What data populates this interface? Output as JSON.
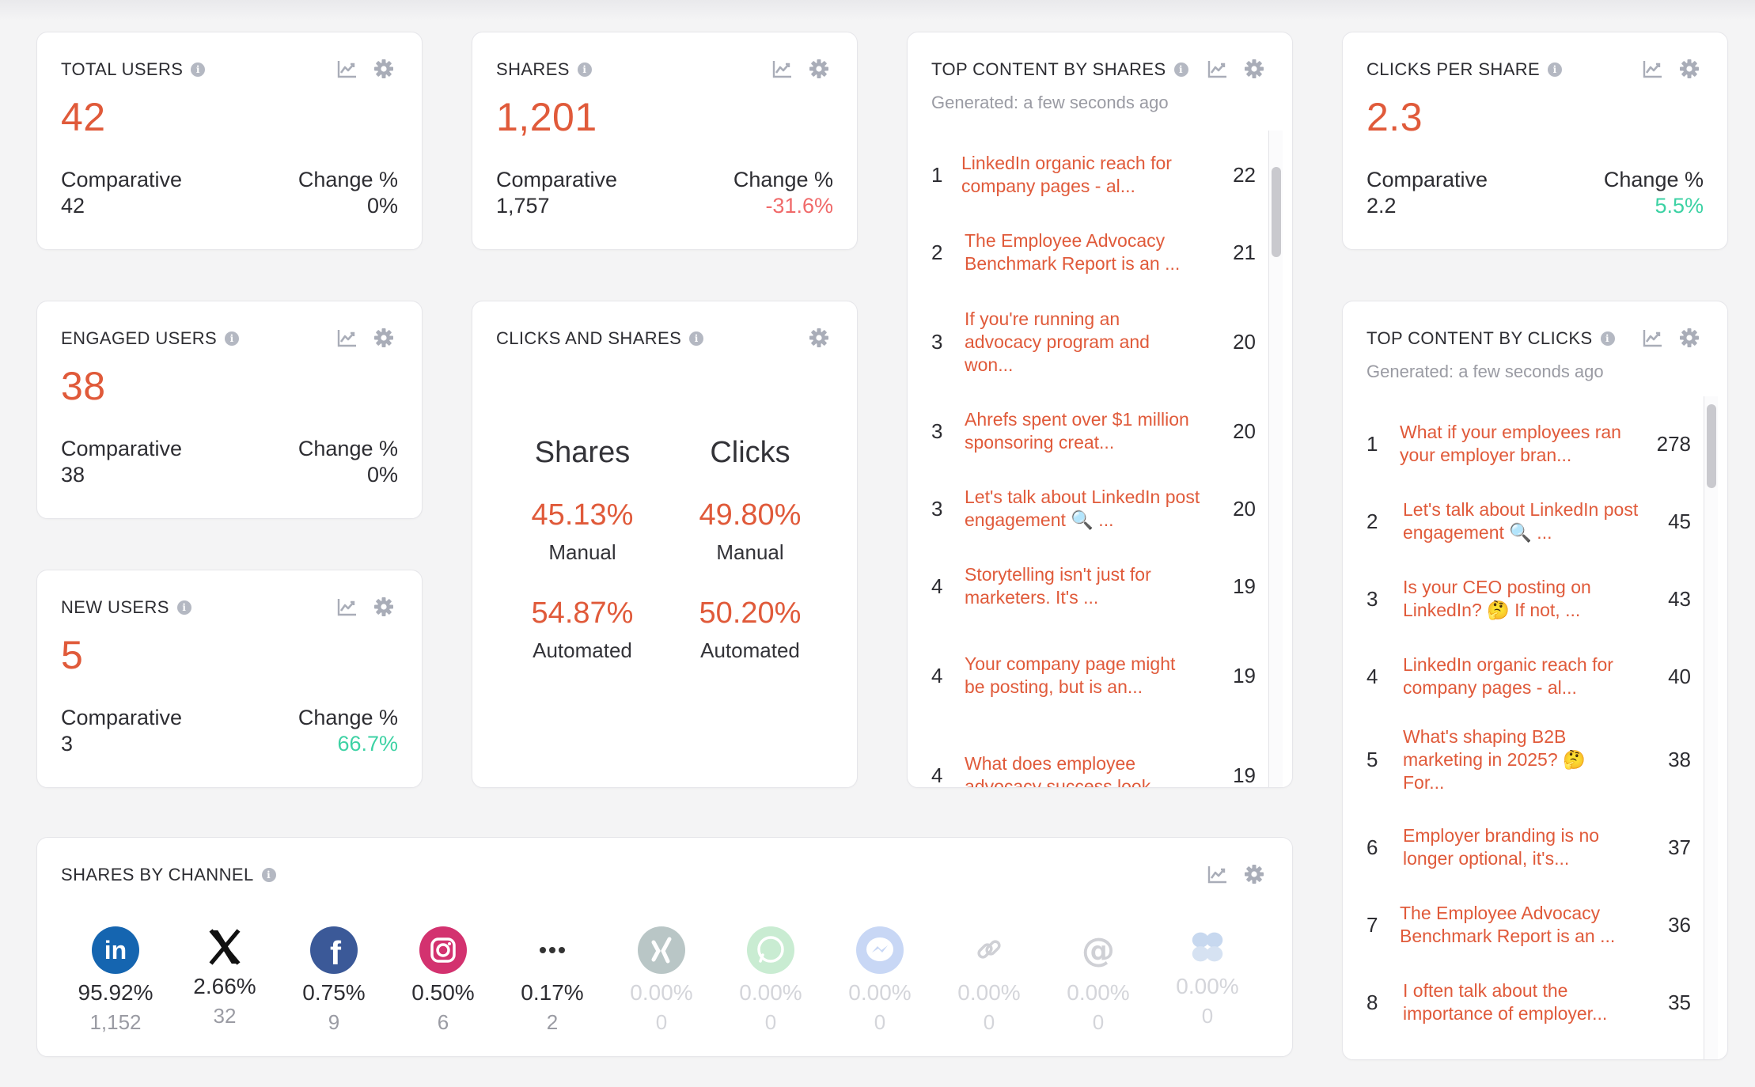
{
  "colors": {
    "accent": "#e05a3a",
    "positive": "#3dd2a4",
    "negative": "#f06a6a",
    "muted": "#9a9ba3"
  },
  "cards": {
    "total_users": {
      "title": "TOTAL USERS",
      "value": "42",
      "cmp_label": "Comparative",
      "cmp_value": "42",
      "chg_label": "Change %",
      "chg_value": "0%"
    },
    "shares": {
      "title": "SHARES",
      "value": "1,201",
      "cmp_label": "Comparative",
      "cmp_value": "1,757",
      "chg_label": "Change %",
      "chg_value": "-31.6%"
    },
    "clicks_per_share": {
      "title": "CLICKS PER SHARE",
      "value": "2.3",
      "cmp_label": "Comparative",
      "cmp_value": "2.2",
      "chg_label": "Change %",
      "chg_value": "5.5%"
    },
    "engaged_users": {
      "title": "ENGAGED USERS",
      "value": "38",
      "cmp_label": "Comparative",
      "cmp_value": "38",
      "chg_label": "Change %",
      "chg_value": "0%"
    },
    "new_users": {
      "title": "NEW USERS",
      "value": "5",
      "cmp_label": "Comparative",
      "cmp_value": "3",
      "chg_label": "Change %",
      "chg_value": "66.7%"
    }
  },
  "clicks_and_shares": {
    "title": "CLICKS AND SHARES",
    "shares": {
      "heading": "Shares",
      "manual_pct": "45.13%",
      "manual_label": "Manual",
      "auto_pct": "54.87%",
      "auto_label": "Automated"
    },
    "clicks": {
      "heading": "Clicks",
      "manual_pct": "49.80%",
      "manual_label": "Manual",
      "auto_pct": "50.20%",
      "auto_label": "Automated"
    }
  },
  "top_by_shares": {
    "title": "TOP CONTENT BY SHARES",
    "generated": "Generated: a few seconds ago",
    "items": [
      {
        "rank": "1",
        "title": "LinkedIn organic reach for company pages - al...",
        "count": "22"
      },
      {
        "rank": "2",
        "title": "The Employee Advocacy Benchmark Report is an ...",
        "count": "21"
      },
      {
        "rank": "3",
        "title": "If you're running an advocacy program and won...",
        "count": "20"
      },
      {
        "rank": "3",
        "title": "Ahrefs spent over $1 million sponsoring creat...",
        "count": "20"
      },
      {
        "rank": "3",
        "title": "Let's talk about LinkedIn post engagement 🔍 ...",
        "count": "20"
      },
      {
        "rank": "4",
        "title": "Storytelling isn't just for marketers. It's ...",
        "count": "19"
      },
      {
        "rank": "4",
        "title": "Your company page might be posting, but is an...",
        "count": "19"
      },
      {
        "rank": "4",
        "title": "What does employee advocacy success look ...",
        "count": "19"
      }
    ]
  },
  "top_by_clicks": {
    "title": "TOP CONTENT BY CLICKS",
    "generated": "Generated: a few seconds ago",
    "items": [
      {
        "rank": "1",
        "title": "What if your employees ran your employer bran...",
        "count": "278"
      },
      {
        "rank": "2",
        "title": "Let's talk about LinkedIn post engagement 🔍 ...",
        "count": "45"
      },
      {
        "rank": "3",
        "title": "Is your CEO posting on LinkedIn? 🤔 If not, ...",
        "count": "43"
      },
      {
        "rank": "4",
        "title": "LinkedIn organic reach for company pages - al...",
        "count": "40"
      },
      {
        "rank": "5",
        "title": "What's shaping B2B marketing in 2025? 🤔 For...",
        "count": "38"
      },
      {
        "rank": "6",
        "title": "Employer branding is no longer optional, it's...",
        "count": "37"
      },
      {
        "rank": "7",
        "title": "The Employee Advocacy Benchmark Report is an ...",
        "count": "36"
      },
      {
        "rank": "8",
        "title": "I often talk about the importance of employer...",
        "count": "35"
      }
    ]
  },
  "shares_by_channel": {
    "title": "SHARES BY CHANNEL",
    "channels": [
      {
        "name": "linkedin-icon",
        "pct": "95.92%",
        "count": "1,152"
      },
      {
        "name": "x-icon",
        "pct": "2.66%",
        "count": "32"
      },
      {
        "name": "facebook-icon",
        "pct": "0.75%",
        "count": "9"
      },
      {
        "name": "instagram-icon",
        "pct": "0.50%",
        "count": "6"
      },
      {
        "name": "more-icon",
        "pct": "0.17%",
        "count": "2"
      },
      {
        "name": "xing-icon",
        "pct": "0.00%",
        "count": "0"
      },
      {
        "name": "whatsapp-icon",
        "pct": "0.00%",
        "count": "0"
      },
      {
        "name": "messenger-icon",
        "pct": "0.00%",
        "count": "0"
      },
      {
        "name": "link-icon",
        "pct": "0.00%",
        "count": "0"
      },
      {
        "name": "email-icon",
        "pct": "0.00%",
        "count": "0"
      },
      {
        "name": "bluesky-icon",
        "pct": "0.00%",
        "count": "0"
      }
    ]
  }
}
